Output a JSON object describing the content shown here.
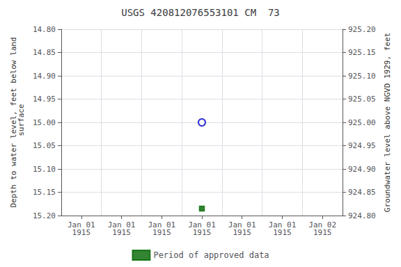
{
  "chart_data": {
    "type": "scatter",
    "title": "USGS 420812076553101 CM  73",
    "y_label": "Depth to water level, feet below land\n surface",
    "y2_label": "Groundwater level above NGVD 1929, feet",
    "categories": [
      "Jan 01\n1915",
      "Jan 01\n1915",
      "Jan 01\n1915",
      "Jan 01\n1915",
      "Jan 01\n1915",
      "Jan 01\n1915",
      "Jan 02\n1915"
    ],
    "series": [
      {
        "color": "#0000cc",
        "marker": "open_circle",
        "values": [
          null,
          null,
          null,
          15.0,
          null,
          null,
          null
        ]
      },
      {
        "name": "Period of approved data",
        "color": "#006600",
        "marker": "square",
        "values": [
          null,
          null,
          null,
          15.185,
          null,
          null,
          null
        ]
      }
    ],
    "ylim": [
      15.2,
      14.8
    ],
    "yticks": [
      {
        "value": 14.8,
        "label": "14.80"
      },
      14.85,
      {
        "value": 14.9,
        "label": "14.90"
      },
      14.95,
      {
        "value": 15.0,
        "label": "15.00"
      },
      15.05,
      {
        "value": 15.1,
        "label": "15.10"
      },
      15.15,
      {
        "value": 15.2,
        "label": "15.20"
      }
    ],
    "y2lim": [
      924.8,
      925.2
    ],
    "y2ticks": [
      {
        "value": 924.8,
        "label": "924.80"
      },
      924.85,
      {
        "value": 924.9,
        "label": "924.90"
      },
      924.95,
      {
        "value": 925.0,
        "label": "925.00"
      },
      925.05,
      {
        "value": 925.1,
        "label": "925.10"
      },
      925.15,
      {
        "value": 925.2,
        "label": "925.20"
      }
    ],
    "grid": true,
    "legend": "bottom"
  }
}
